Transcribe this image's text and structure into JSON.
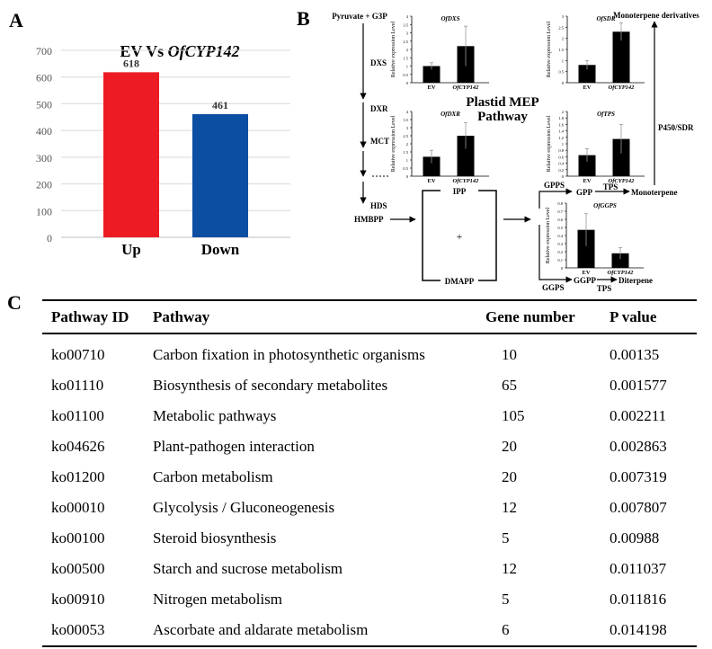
{
  "panels": {
    "a": "A",
    "b": "B",
    "c": "C"
  },
  "chart_data": [
    {
      "type": "bar",
      "title_prefix": "EV Vs ",
      "title_gene": "OfCYP142",
      "categories": [
        "Up",
        "Down"
      ],
      "values": [
        618,
        461
      ],
      "colors": [
        "#ed1c24",
        "#0b4ea2"
      ],
      "ylim": [
        0,
        700
      ],
      "yticks": [
        0,
        100,
        200,
        300,
        400,
        500,
        600,
        700
      ]
    },
    {
      "type": "bar",
      "gene": "OfDXS",
      "ylabel": "Relative expression Level",
      "categories": [
        "EV",
        "OfCYP142"
      ],
      "values": [
        1.0,
        2.2
      ],
      "errors": [
        0.2,
        1.2
      ],
      "ylim": [
        0,
        4
      ],
      "yticks": [
        "0",
        "0.5",
        "1",
        "1.5",
        "2",
        "2.5",
        "3",
        "3.5",
        "4"
      ]
    },
    {
      "type": "bar",
      "gene": "OfSDR",
      "ylabel": "Relative expression Level",
      "categories": [
        "EV",
        "OfCYP142"
      ],
      "values": [
        0.8,
        2.3
      ],
      "errors": [
        0.2,
        0.4
      ],
      "ylim": [
        0,
        3
      ],
      "yticks": [
        "0",
        "0.5",
        "1",
        "1.5",
        "2",
        "2.5",
        "3"
      ]
    },
    {
      "type": "bar",
      "gene": "OfDXR",
      "ylabel": "Relative expression Level",
      "categories": [
        "EV",
        "OfCYP142"
      ],
      "values": [
        1.2,
        2.5
      ],
      "errors": [
        0.4,
        0.8
      ],
      "ylim": [
        0,
        4
      ],
      "yticks": [
        "0",
        "0.5",
        "1",
        "1.5",
        "2",
        "2.5",
        "3",
        "3.5",
        "4"
      ]
    },
    {
      "type": "bar",
      "gene": "OfTPS",
      "ylabel": "Relative expression Level",
      "categories": [
        "EV",
        "OfCYP142"
      ],
      "values": [
        0.65,
        1.15
      ],
      "errors": [
        0.2,
        0.45
      ],
      "ylim": [
        0,
        2
      ],
      "yticks": [
        "0",
        "0.2",
        "0.4",
        "0.6",
        "0.8",
        "1",
        "1.2",
        "1.4",
        "1.6",
        "1.8",
        "2"
      ]
    },
    {
      "type": "bar",
      "gene": "OfGGPS",
      "ylabel": "Relative expression Level",
      "categories": [
        "EV",
        "OfCYP142"
      ],
      "values": [
        0.47,
        0.18
      ],
      "errors": [
        0.2,
        0.07
      ],
      "ylim": [
        0,
        0.8
      ],
      "yticks": [
        "0",
        "0.1",
        "0.2",
        "0.3",
        "0.4",
        "0.5",
        "0.6",
        "0.7",
        "0.8"
      ]
    }
  ],
  "pathway": {
    "start": "Pyruvate + G3P",
    "steps": [
      "DXS",
      "DXR",
      "MCT",
      "HDS"
    ],
    "hmbpp": "HMBPP",
    "ipp": "IPP",
    "dmapp": "DMAPP",
    "plus": "+",
    "title_line1": "Plastid MEP",
    "title_line2": "Pathway",
    "gpps": "GPPS",
    "gpp": "GPP",
    "tps": "TPS",
    "monoterpene": "Monoterpene",
    "p450": "P450/SDR",
    "monoterpene_derivatives": "Monoterpene derivatives",
    "ggps": "GGPS",
    "ggpp": "GGPP",
    "tps2": "TPS",
    "diterpene": "Diterpene"
  },
  "table": {
    "headers": [
      "Pathway ID",
      "Pathway",
      "Gene number",
      "P value"
    ],
    "rows": [
      [
        "ko00710",
        "Carbon fixation in photosynthetic organisms",
        "10",
        "0.00135"
      ],
      [
        "ko01110",
        "Biosynthesis of secondary metabolites",
        "65",
        "0.001577"
      ],
      [
        "ko01100",
        "Metabolic pathways",
        "105",
        "0.002211"
      ],
      [
        "ko04626",
        "Plant-pathogen interaction",
        "20",
        "0.002863"
      ],
      [
        "ko01200",
        "Carbon metabolism",
        "20",
        "0.007319"
      ],
      [
        "ko00010",
        "Glycolysis / Gluconeogenesis",
        "12",
        "0.007807"
      ],
      [
        "ko00100",
        "Steroid biosynthesis",
        "5",
        "0.00988"
      ],
      [
        "ko00500",
        "Starch and sucrose metabolism",
        "12",
        "0.011037"
      ],
      [
        "ko00910",
        "Nitrogen metabolism",
        "5",
        "0.011816"
      ],
      [
        "ko00053",
        "Ascorbate and aldarate metabolism",
        "6",
        "0.014198"
      ]
    ]
  }
}
